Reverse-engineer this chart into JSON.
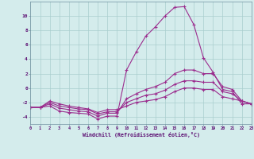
{
  "x": [
    0,
    1,
    2,
    3,
    4,
    5,
    6,
    7,
    8,
    9,
    10,
    11,
    12,
    13,
    14,
    15,
    16,
    17,
    18,
    19,
    20,
    21,
    22,
    23
  ],
  "series1": [
    -2.7,
    -2.7,
    -2.5,
    -3.2,
    -3.4,
    -3.5,
    -3.6,
    -4.3,
    -3.9,
    -3.9,
    2.5,
    5.0,
    7.2,
    8.5,
    10.0,
    11.2,
    11.3,
    8.8,
    4.2,
    2.2,
    -0.2,
    -0.5,
    -2.2,
    -2.2
  ],
  "series2": [
    -2.7,
    -2.7,
    -2.2,
    -2.8,
    -3.0,
    -3.2,
    -3.3,
    -3.9,
    -3.5,
    -3.5,
    -1.5,
    -0.8,
    -0.2,
    0.2,
    0.8,
    2.0,
    2.5,
    2.5,
    2.0,
    2.0,
    0.2,
    -0.2,
    -1.8,
    -2.2
  ],
  "series3": [
    -2.7,
    -2.7,
    -2.0,
    -2.5,
    -2.7,
    -2.9,
    -3.0,
    -3.6,
    -3.3,
    -3.3,
    -2.0,
    -1.5,
    -1.0,
    -0.8,
    -0.3,
    0.5,
    1.0,
    1.0,
    0.8,
    0.8,
    -0.5,
    -0.8,
    -1.8,
    -2.2
  ],
  "series4": [
    -2.7,
    -2.7,
    -1.8,
    -2.2,
    -2.5,
    -2.7,
    -2.9,
    -3.4,
    -3.0,
    -3.0,
    -2.5,
    -2.0,
    -1.8,
    -1.6,
    -1.2,
    -0.5,
    0.0,
    0.0,
    -0.2,
    -0.2,
    -1.2,
    -1.5,
    -1.8,
    -2.2
  ],
  "xlim": [
    0,
    23
  ],
  "ylim": [
    -5,
    12
  ],
  "yticks": [
    -4,
    -2,
    0,
    2,
    4,
    6,
    8,
    10
  ],
  "xticks": [
    0,
    1,
    2,
    3,
    4,
    5,
    6,
    7,
    8,
    9,
    10,
    11,
    12,
    13,
    14,
    15,
    16,
    17,
    18,
    19,
    20,
    21,
    22,
    23
  ],
  "xlabel": "Windchill (Refroidissement éolien,°C)",
  "line_color": "#9B2D8E",
  "marker": "+",
  "bg_color": "#d4ecec",
  "grid_color": "#aacece"
}
